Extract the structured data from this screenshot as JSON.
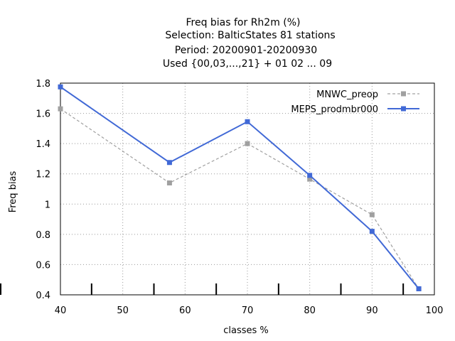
{
  "chart_data": {
    "type": "line",
    "title_lines": [
      "Freq bias  for Rh2m (%)",
      "Selection: BalticStates     81 stations",
      "Period: 20200901-20200930",
      "Used {00,03,...,21} + 01 02 ... 09"
    ],
    "xlabel": "classes %",
    "ylabel": "Freq bias",
    "xlim": [
      40,
      100
    ],
    "ylim": [
      0.4,
      1.8
    ],
    "xticks": [
      40,
      50,
      60,
      70,
      80,
      90,
      100
    ],
    "xtick_labels": [
      "40",
      "50",
      "60",
      "70",
      "80",
      "90",
      "100"
    ],
    "yticks": [
      0.4,
      0.6,
      0.8,
      1.0,
      1.2,
      1.4,
      1.6,
      1.8
    ],
    "ytick_labels": [
      "0.4",
      "0.6",
      "0.8",
      "1",
      "1.2",
      "1.4",
      "1.6",
      "1.8"
    ],
    "minor_xticks": [
      45,
      55,
      65,
      75,
      85,
      95
    ],
    "grid": true,
    "legend_position": "top-right",
    "series": [
      {
        "name": "MNWC_preop",
        "color": "#a0a0a0",
        "dashed": true,
        "x": [
          40,
          57.5,
          70,
          80,
          90,
          97.5
        ],
        "y": [
          1.63,
          1.14,
          1.4,
          1.165,
          0.93,
          0.44
        ]
      },
      {
        "name": "MEPS_prodmbr000",
        "color": "#4169d6",
        "dashed": false,
        "x": [
          40,
          57.5,
          70,
          80,
          90,
          97.5
        ],
        "y": [
          1.775,
          1.275,
          1.545,
          1.19,
          0.82,
          0.44
        ]
      }
    ]
  }
}
